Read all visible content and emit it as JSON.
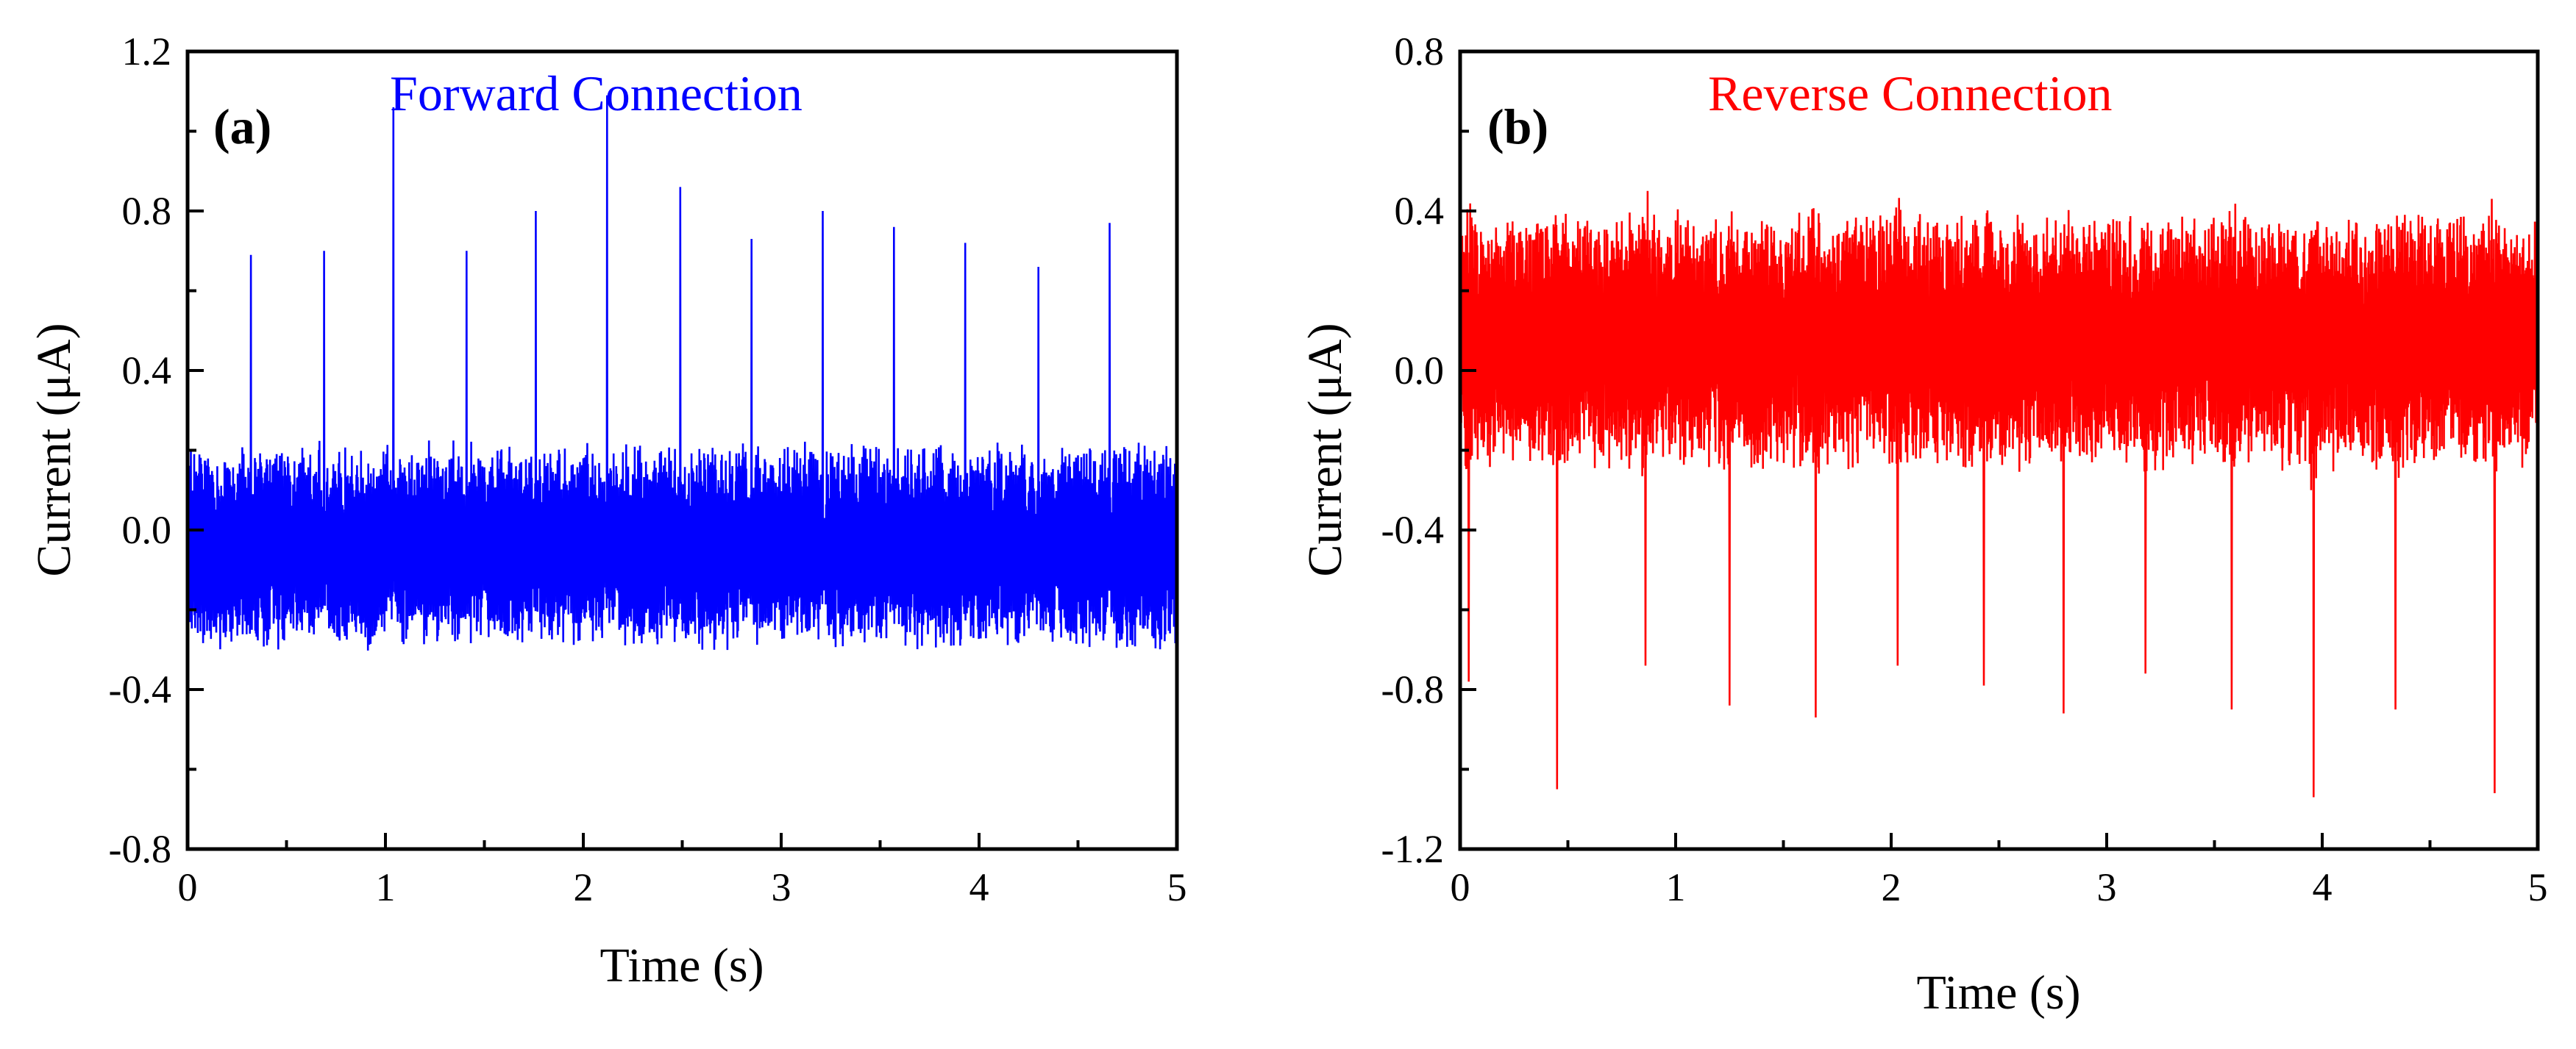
{
  "chart_data": [
    {
      "type": "line",
      "panel_label": "(a)",
      "title": "Forward Connection",
      "xlabel": "Time (s)",
      "ylabel": "Current (μA)",
      "xlim": [
        0,
        5
      ],
      "ylim": [
        -0.8,
        1.2
      ],
      "xticks": [
        "0",
        "1",
        "2",
        "3",
        "4",
        "5"
      ],
      "yticks": [
        "-0.8",
        "-0.4",
        "0.0",
        "0.4",
        "0.8",
        "1.2"
      ],
      "color": "#0000ff",
      "series": [
        {
          "name": "Forward Connection",
          "baseline_noise_range": [
            -0.3,
            0.22
          ],
          "peak_times": [
            0.32,
            0.69,
            1.04,
            1.41,
            1.76,
            2.12,
            2.49,
            2.85,
            3.21,
            3.57,
            3.93,
            4.3,
            4.66
          ],
          "peak_values": [
            0.69,
            0.7,
            1.06,
            0.7,
            0.8,
            1.09,
            0.86,
            0.73,
            0.8,
            0.76,
            0.72,
            0.66,
            0.77
          ]
        }
      ]
    },
    {
      "type": "line",
      "panel_label": "(b)",
      "title": "Reverse Connection",
      "xlabel": "Time (s)",
      "ylabel": "Current (μA)",
      "xlim": [
        0,
        5
      ],
      "ylim": [
        -1.2,
        0.8
      ],
      "xticks": [
        "0",
        "1",
        "2",
        "3",
        "4",
        "5"
      ],
      "yticks": [
        "-1.2",
        "-0.8",
        "-0.4",
        "0.0",
        "0.4",
        "0.8"
      ],
      "color": "#ff0000",
      "series": [
        {
          "name": "Reverse Connection",
          "baseline_noise_range": [
            -0.25,
            0.4
          ],
          "dip_times": [
            0.04,
            0.45,
            0.86,
            1.25,
            1.65,
            2.03,
            2.43,
            2.8,
            3.18,
            3.58,
            3.96,
            4.34,
            4.8
          ],
          "dip_values": [
            -0.78,
            -1.05,
            -0.74,
            -0.84,
            -0.87,
            -0.74,
            -0.79,
            -0.86,
            -0.76,
            -0.85,
            -1.07,
            -0.85,
            -1.06
          ]
        }
      ]
    }
  ]
}
